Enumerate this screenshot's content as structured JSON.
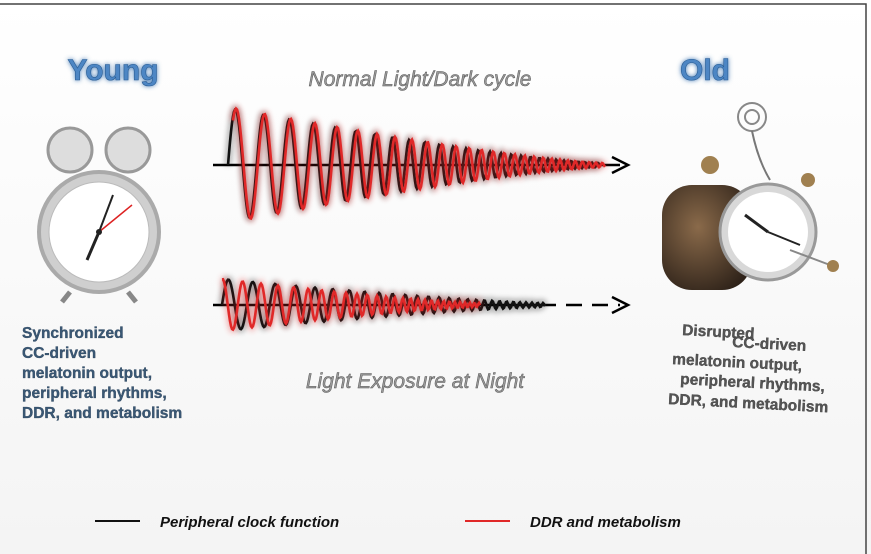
{
  "young": "Young",
  "old": "Old",
  "top_wave": {
    "label": "Normal Light/Dark cycle"
  },
  "bottom_wave": {
    "label": "Light Exposure at Night"
  },
  "young_text": [
    "Synchronized",
    "CC-driven",
    "melatonin output,",
    "peripheral rhythms,",
    "DDR, and metabolism"
  ],
  "old_text": [
    "Disrupted",
    "CC-driven",
    "melatonin output,",
    "peripheral rhythms,",
    "DDR, and metabolism"
  ],
  "legend": [
    {
      "label": "Peripheral clock function",
      "color": "#111111"
    },
    {
      "label": "DDR and metabolism",
      "color": "#e02828"
    }
  ]
}
